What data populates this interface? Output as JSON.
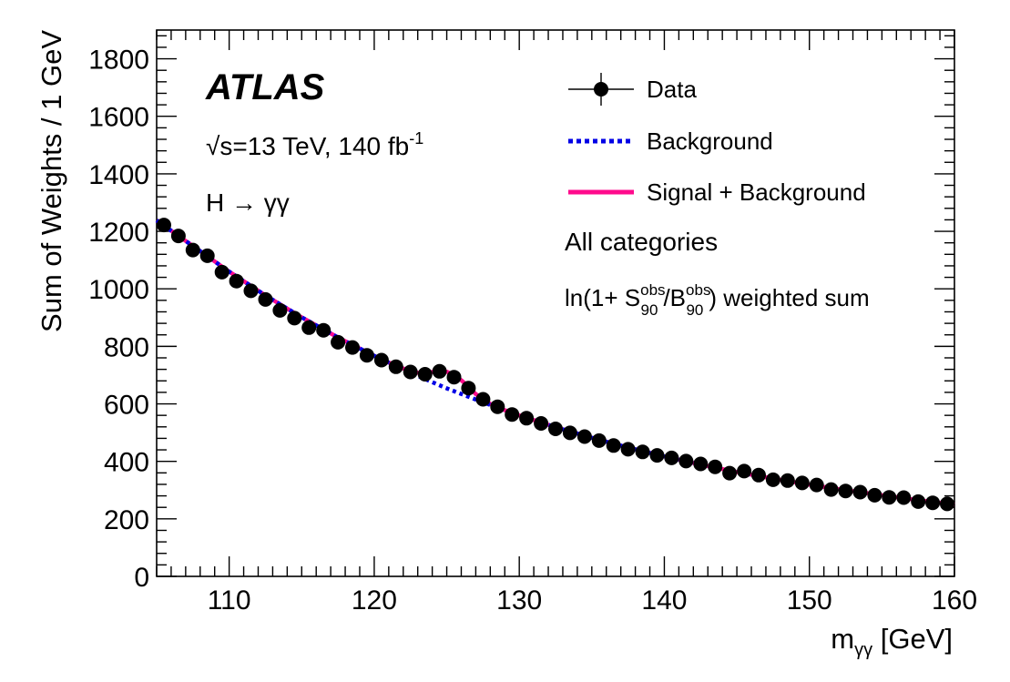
{
  "chart_data": {
    "type": "scatter",
    "experiment_label": "ATLAS",
    "energy_label": "√s=13 TeV, 140 fb",
    "energy_label_sup": "-1",
    "process_label": "H → γγ",
    "category_label": "All categories",
    "weight_label": {
      "prefix": "ln(1+ S",
      "s_sup": "obs",
      "s_sub": "90",
      "mid": "/B",
      "b_sup": "obs",
      "b_sub": "90",
      "suffix": ") weighted sum"
    },
    "xlabel": "m",
    "xlabel_sub": "γγ",
    "xlabel_unit": " [GeV]",
    "ylabel": "Sum of Weights / 1 GeV",
    "xlim": [
      105,
      160
    ],
    "ylim": [
      0,
      1900
    ],
    "x_ticks": [
      110,
      120,
      130,
      140,
      150,
      160
    ],
    "y_ticks": [
      0,
      200,
      400,
      600,
      800,
      1000,
      1200,
      1400,
      1600,
      1800
    ],
    "legend": [
      {
        "name": "Data",
        "style": "marker",
        "color": "#000000"
      },
      {
        "name": "Background",
        "style": "dotted",
        "color": "#0000e6"
      },
      {
        "name": "Signal + Background",
        "style": "solid",
        "color": "#ff0a8c"
      }
    ],
    "data_points": {
      "x": [
        105.5,
        106.5,
        107.5,
        108.5,
        109.5,
        110.5,
        111.5,
        112.5,
        113.5,
        114.5,
        115.5,
        116.5,
        117.5,
        118.5,
        119.5,
        120.5,
        121.5,
        122.5,
        123.5,
        124.5,
        125.5,
        126.5,
        127.5,
        128.5,
        129.5,
        130.5,
        131.5,
        132.5,
        133.5,
        134.5,
        135.5,
        136.5,
        137.5,
        138.5,
        139.5,
        140.5,
        141.5,
        142.5,
        143.5,
        144.5,
        145.5,
        146.5,
        147.5,
        148.5,
        149.5,
        150.5,
        151.5,
        152.5,
        153.5,
        154.5,
        155.5,
        156.5,
        157.5,
        158.5,
        159.5
      ],
      "y": [
        1222,
        1184,
        1135,
        1115,
        1058,
        1027,
        993,
        963,
        925,
        898,
        865,
        856,
        814,
        796,
        769,
        752,
        729,
        711,
        703,
        713,
        693,
        655,
        616,
        590,
        563,
        550,
        532,
        513,
        499,
        486,
        472,
        455,
        442,
        433,
        421,
        412,
        401,
        391,
        381,
        359,
        366,
        352,
        336,
        333,
        325,
        318,
        302,
        297,
        293,
        282,
        275,
        274,
        260,
        256,
        252
      ]
    },
    "background_fit": {
      "x": [
        105,
        107.5,
        110,
        112.5,
        115,
        117.5,
        120,
        122.5,
        125,
        127.5,
        130,
        132.5,
        135,
        137.5,
        140,
        142.5,
        145,
        147.5,
        150,
        152.5,
        155,
        157.5,
        160
      ],
      "y": [
        1238,
        1149,
        1060,
        977,
        901,
        831,
        767,
        708,
        654,
        605,
        560,
        519,
        482,
        448,
        417,
        389,
        363,
        340,
        319,
        300,
        282,
        265,
        250
      ]
    },
    "signal_plus_background_fit": {
      "x": [
        105,
        107.5,
        110,
        112.5,
        115,
        117.5,
        120,
        121,
        122,
        122.5,
        123,
        123.5,
        124,
        124.5,
        125,
        125.5,
        126,
        126.5,
        127,
        127.5,
        128,
        129,
        130,
        132.5,
        135,
        137.5,
        140,
        142.5,
        145,
        147.5,
        150,
        152.5,
        155,
        157.5,
        160
      ],
      "y": [
        1238,
        1149,
        1060,
        977,
        901,
        831,
        767,
        744,
        723,
        713,
        708,
        707,
        711,
        714,
        712,
        700,
        682,
        660,
        634,
        617,
        600,
        578,
        560,
        519,
        482,
        448,
        417,
        389,
        363,
        340,
        319,
        300,
        282,
        265,
        250
      ]
    }
  }
}
